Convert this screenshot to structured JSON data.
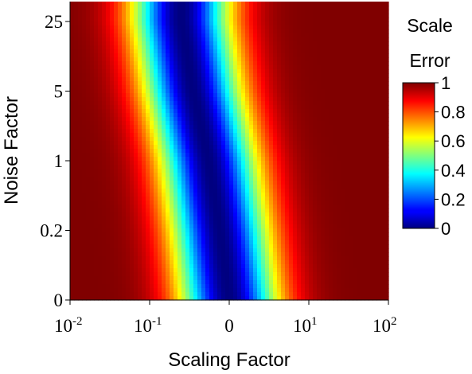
{
  "chart_data": {
    "type": "heatmap",
    "title": "",
    "xlabel": "Scaling Factor",
    "ylabel": "Noise Factor",
    "x_scale": "log",
    "x_range": [
      0.01,
      100
    ],
    "x_ticks": [
      {
        "base": "10",
        "exp": "-2",
        "value": 0.01
      },
      {
        "base": "10",
        "exp": "-1",
        "value": 0.1
      },
      {
        "base": "0",
        "exp": "",
        "value": 1
      },
      {
        "base": "10",
        "exp": "1",
        "value": 10
      },
      {
        "base": "10",
        "exp": "2",
        "value": 100
      }
    ],
    "y_ticks": [
      "0",
      "0.2",
      "1",
      "5",
      "25"
    ],
    "colorbar": {
      "title_lines": [
        "Scale",
        "Error"
      ],
      "range": [
        0,
        1
      ],
      "ticks": [
        "1",
        "0.8",
        "0.6",
        "0.4",
        "0.2",
        "0"
      ],
      "colormap": "jet"
    },
    "error_valley": [
      {
        "noise": "0",
        "scaling_at_min_error": 1
      },
      {
        "noise": "0.2",
        "scaling_at_min_error": 0.76
      },
      {
        "noise": "1",
        "scaling_at_min_error": 0.55
      },
      {
        "noise": "5",
        "scaling_at_min_error": 0.35
      },
      {
        "noise": "25",
        "scaling_at_min_error": 0.25
      }
    ],
    "grid": false,
    "legend": "colorbar-right"
  }
}
